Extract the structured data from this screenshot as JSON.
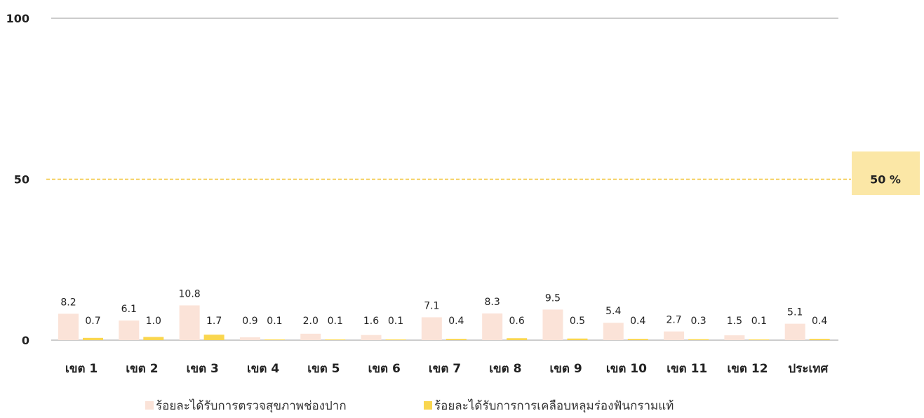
{
  "chart_data": {
    "type": "bar",
    "categories": [
      "เขต 1",
      "เขต 2",
      "เขต 3",
      "เขต 4",
      "เขต 5",
      "เขต 6",
      "เขต 7",
      "เขต 8",
      "เขต 9",
      "เขต 10",
      "เขต 11",
      "เขต 12",
      "ประเทศ"
    ],
    "series": [
      {
        "name": "ร้อยละได้รับการตรวจสุขภาพช่องปาก",
        "color": "#fbe3d8",
        "values": [
          8.2,
          6.1,
          10.8,
          0.9,
          2.0,
          1.6,
          7.1,
          8.3,
          9.5,
          5.4,
          2.7,
          1.5,
          5.1
        ],
        "labels": [
          "8.2",
          "6.1",
          "10.8",
          "0.9",
          "2.0",
          "1.6",
          "7.1",
          "8.3",
          "9.5",
          "5.4",
          "2.7",
          "1.5",
          "5.1"
        ]
      },
      {
        "name": "ร้อยละได้รับการการเคลือบหลุมร่องฟันกรามแท้",
        "color": "#f9d64f",
        "values": [
          0.7,
          1.0,
          1.7,
          0.1,
          0.1,
          0.1,
          0.4,
          0.6,
          0.5,
          0.4,
          0.3,
          0.1,
          0.4
        ],
        "labels": [
          "0.7",
          "1.0",
          "1.7",
          "0.1",
          "0.1",
          "0.1",
          "0.4",
          "0.6",
          "0.5",
          "0.4",
          "0.3",
          "0.1",
          "0.4"
        ]
      }
    ],
    "yticks": [
      "0",
      "50",
      "100"
    ],
    "ylim": [
      0,
      100
    ],
    "target": {
      "value": 50,
      "label": "50 %",
      "line_color": "#f2c230",
      "box_color": "#fbe7a6"
    },
    "gridline_color": "#9a9a9a",
    "legend_position": "bottom"
  }
}
